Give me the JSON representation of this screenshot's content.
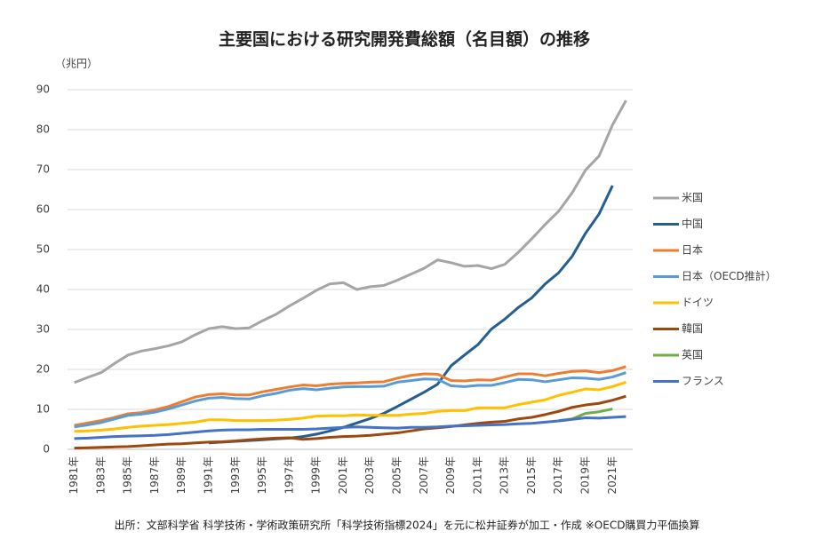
{
  "chart_data": {
    "type": "line",
    "title": "主要国における研究開発費総額（名目額）の推移",
    "y_label": "（兆円）",
    "footnote": "出所：文部科学省 科学技術・学術政策研究所「科学技術指標2024」を元に松井証券が加工・作成 ※OECD購買力平価換算",
    "categories": [
      "1981年",
      null,
      "1983年",
      null,
      "1985年",
      null,
      "1987年",
      null,
      "1989年",
      null,
      "1991年",
      null,
      "1993年",
      null,
      "1995年",
      null,
      "1997年",
      null,
      "1999年",
      null,
      "2001年",
      null,
      "2003年",
      null,
      "2005年",
      null,
      "2007年",
      null,
      "2009年",
      null,
      "2011年",
      null,
      "2013年",
      null,
      "2015年",
      null,
      "2017年",
      null,
      "2019年",
      null,
      "2021年",
      null
    ],
    "ylim": [
      0,
      90
    ],
    "yticks": [
      0,
      10,
      20,
      30,
      40,
      50,
      60,
      70,
      80,
      90
    ],
    "grid": true,
    "legend": "right",
    "series": [
      {
        "name": "米国",
        "color": "#a5a5a5",
        "values": [
          16.7,
          18.0,
          19.2,
          21.5,
          23.6,
          24.6,
          25.2,
          25.9,
          26.9,
          28.7,
          30.2,
          30.7,
          30.2,
          30.4,
          32.2,
          33.8,
          35.9,
          37.8,
          39.8,
          41.4,
          41.7,
          40.0,
          40.7,
          41.0,
          42.3,
          43.8,
          45.3,
          47.4,
          46.7,
          45.8,
          46.0,
          45.2,
          46.3,
          49.3,
          52.7,
          56.3,
          59.6,
          64.2,
          69.9,
          73.4,
          81.2,
          87.3
        ]
      },
      {
        "name": "中国",
        "color": "#255e91",
        "values": [
          null,
          null,
          null,
          null,
          null,
          null,
          null,
          null,
          null,
          null,
          1.6,
          1.8,
          2.0,
          2.2,
          2.4,
          2.6,
          2.8,
          3.2,
          3.8,
          4.6,
          5.5,
          6.6,
          7.7,
          9.0,
          10.7,
          12.5,
          14.3,
          16.3,
          20.9,
          23.6,
          26.2,
          30.1,
          32.6,
          35.5,
          37.9,
          41.4,
          44.2,
          48.3,
          54.1,
          58.9,
          66.0,
          null
        ]
      },
      {
        "name": "日本",
        "color": "#ed7d31",
        "values": [
          6.0,
          6.6,
          7.2,
          8.0,
          8.9,
          9.2,
          9.9,
          10.7,
          11.9,
          13.1,
          13.7,
          13.9,
          13.6,
          13.6,
          14.4,
          15.0,
          15.6,
          16.1,
          15.9,
          16.3,
          16.5,
          16.6,
          16.8,
          16.9,
          17.8,
          18.5,
          18.9,
          18.8,
          17.2,
          17.1,
          17.4,
          17.3,
          18.1,
          18.9,
          18.9,
          18.4,
          19.0,
          19.5,
          19.6,
          19.2,
          19.7,
          20.7
        ]
      },
      {
        "name": "日本（OECD推計）",
        "color": "#5b9bd5",
        "values": [
          5.6,
          6.1,
          6.7,
          7.6,
          8.5,
          8.8,
          9.3,
          10.1,
          11.1,
          12.1,
          12.8,
          13.0,
          12.7,
          12.6,
          13.4,
          14.0,
          14.8,
          15.2,
          14.9,
          15.3,
          15.6,
          15.7,
          15.7,
          15.8,
          16.8,
          17.2,
          17.6,
          17.5,
          15.9,
          15.7,
          16.0,
          16.0,
          16.7,
          17.5,
          17.4,
          16.9,
          17.4,
          17.9,
          17.8,
          17.5,
          18.1,
          19.2
        ]
      },
      {
        "name": "ドイツ",
        "color": "#ffc000",
        "values": [
          4.5,
          4.6,
          4.8,
          5.1,
          5.5,
          5.8,
          6.0,
          6.2,
          6.5,
          6.8,
          7.4,
          7.4,
          7.2,
          7.2,
          7.2,
          7.3,
          7.5,
          7.8,
          8.3,
          8.4,
          8.4,
          8.6,
          8.5,
          8.5,
          8.5,
          8.8,
          9.0,
          9.5,
          9.7,
          9.7,
          10.4,
          10.4,
          10.4,
          11.2,
          11.8,
          12.4,
          13.5,
          14.3,
          15.1,
          14.9,
          15.7,
          16.8
        ]
      },
      {
        "name": "韓国",
        "color": "#9e480e",
        "values": [
          0.3,
          0.4,
          0.5,
          0.6,
          0.7,
          0.9,
          1.1,
          1.3,
          1.4,
          1.6,
          1.8,
          1.9,
          2.1,
          2.4,
          2.6,
          2.8,
          2.9,
          2.5,
          2.7,
          3.0,
          3.2,
          3.3,
          3.5,
          3.8,
          4.1,
          4.6,
          5.1,
          5.4,
          5.7,
          6.1,
          6.5,
          6.8,
          7.0,
          7.6,
          8.0,
          8.7,
          9.5,
          10.5,
          11.1,
          11.5,
          12.3,
          13.3
        ]
      },
      {
        "name": "英国",
        "color": "#70ad47",
        "values": [
          null,
          null,
          null,
          null,
          null,
          null,
          null,
          null,
          null,
          null,
          null,
          null,
          null,
          null,
          null,
          null,
          null,
          null,
          null,
          null,
          null,
          null,
          null,
          null,
          null,
          null,
          null,
          null,
          null,
          null,
          null,
          null,
          null,
          null,
          null,
          null,
          7.2,
          7.6,
          9.0,
          9.4,
          10.1,
          null
        ]
      },
      {
        "name": "フランス",
        "color": "#4472c4",
        "values": [
          2.7,
          2.8,
          3.0,
          3.2,
          3.3,
          3.4,
          3.5,
          3.7,
          4.0,
          4.3,
          4.6,
          4.8,
          4.9,
          4.9,
          5.0,
          5.0,
          5.0,
          5.0,
          5.1,
          5.3,
          5.5,
          5.6,
          5.5,
          5.4,
          5.3,
          5.5,
          5.5,
          5.6,
          5.8,
          5.9,
          6.0,
          6.1,
          6.2,
          6.4,
          6.5,
          6.8,
          7.1,
          7.5,
          7.9,
          7.8,
          8.0,
          8.2
        ]
      }
    ]
  }
}
